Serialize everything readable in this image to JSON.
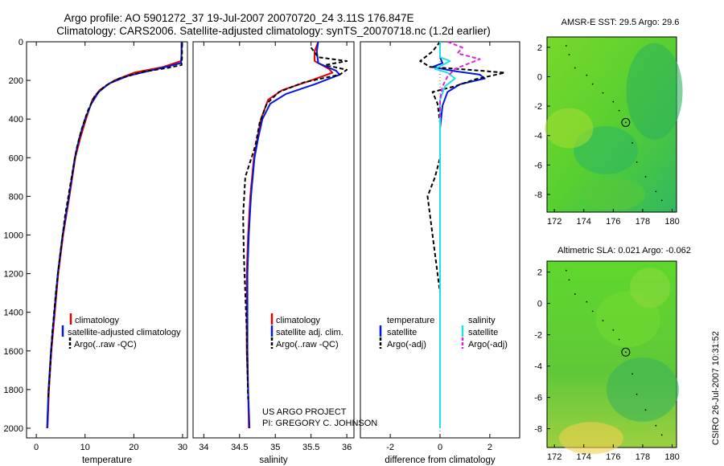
{
  "header": {
    "line1": "Argo profile: AO 5901272_37 19-Jul-2007 20070720_24 3.11S 176.847E",
    "line2": "Climatology: CARS2006. Satellite-adjusted climatology: synTS_20070718.nc (1.2d earlier)"
  },
  "credits": {
    "project": "US ARGO PROJECT",
    "pi": "PI: GREGORY C. JOHNSON",
    "stamp": "CSIRO 26-Jul-2007 10:31:52"
  },
  "colors": {
    "climatology": "#e00000",
    "satellite": "#0018e0",
    "argo": "#000000",
    "satellite_sal": "#20e0e0",
    "argo_sal": "#e020e0"
  },
  "chart_data": [
    {
      "id": "temperature",
      "type": "line",
      "xlabel": "temperature",
      "ylabel": "",
      "xlim": [
        -2,
        31
      ],
      "ylim": [
        2050,
        0
      ],
      "xticks": [
        0,
        10,
        20,
        30
      ],
      "yticks": [
        0,
        200,
        400,
        600,
        800,
        1000,
        1200,
        1400,
        1600,
        1800,
        2000
      ],
      "legend": [
        "climatology",
        "satellite-adjusted climatology",
        "Argo(..raw -QC)"
      ],
      "series": [
        {
          "name": "climatology",
          "color": "#e00000",
          "dash": "",
          "points": [
            [
              29.8,
              0
            ],
            [
              29.8,
              60
            ],
            [
              29.7,
              100
            ],
            [
              26,
              130
            ],
            [
              20,
              160
            ],
            [
              16,
              200
            ],
            [
              13,
              250
            ],
            [
              11.5,
              300
            ],
            [
              10.2,
              400
            ],
            [
              9,
              500
            ],
            [
              8,
              600
            ],
            [
              6.8,
              800
            ],
            [
              5.5,
              1000
            ],
            [
              4.5,
              1200
            ],
            [
              3.8,
              1400
            ],
            [
              3.1,
              1600
            ],
            [
              2.6,
              1800
            ],
            [
              2.3,
              2000
            ]
          ]
        },
        {
          "name": "satellite",
          "color": "#0018e0",
          "dash": "",
          "points": [
            [
              29.8,
              0
            ],
            [
              29.8,
              60
            ],
            [
              29.7,
              110
            ],
            [
              25,
              140
            ],
            [
              19,
              175
            ],
            [
              15,
              215
            ],
            [
              12.8,
              260
            ],
            [
              11.3,
              320
            ],
            [
              10,
              400
            ],
            [
              8.8,
              500
            ],
            [
              7.9,
              600
            ],
            [
              6.7,
              800
            ],
            [
              5.4,
              1000
            ],
            [
              4.4,
              1200
            ],
            [
              3.7,
              1400
            ],
            [
              3.0,
              1600
            ],
            [
              2.5,
              1800
            ],
            [
              2.2,
              2000
            ]
          ]
        },
        {
          "name": "Argo",
          "color": "#000000",
          "dash": "5,3",
          "points": [
            [
              29.9,
              10
            ],
            [
              29.9,
              80
            ],
            [
              29.8,
              120
            ],
            [
              27,
              135
            ],
            [
              22,
              155
            ],
            [
              17,
              190
            ],
            [
              14,
              230
            ],
            [
              12,
              280
            ],
            [
              10.5,
              360
            ],
            [
              9.2,
              460
            ],
            [
              8.2,
              560
            ],
            [
              7.1,
              720
            ],
            [
              5.9,
              900
            ],
            [
              4.9,
              1100
            ],
            [
              4.0,
              1300
            ],
            [
              3.3,
              1500
            ],
            [
              2.8,
              1700
            ],
            [
              2.4,
              1850
            ]
          ]
        }
      ]
    },
    {
      "id": "salinity",
      "type": "line",
      "xlabel": "salinity",
      "ylabel": "",
      "xlim": [
        33.85,
        36.1
      ],
      "ylim": [
        2050,
        0
      ],
      "xticks": [
        34,
        34.5,
        35,
        35.5,
        36
      ],
      "yticks": [],
      "legend": [
        "climatology",
        "satellite adj. clim.",
        "Argo(..raw -QC)"
      ],
      "series": [
        {
          "name": "climatology",
          "color": "#e00000",
          "dash": "",
          "points": [
            [
              35.6,
              0
            ],
            [
              35.55,
              50
            ],
            [
              35.55,
              100
            ],
            [
              35.75,
              140
            ],
            [
              35.8,
              160
            ],
            [
              35.5,
              200
            ],
            [
              35.1,
              250
            ],
            [
              34.9,
              300
            ],
            [
              34.8,
              400
            ],
            [
              34.75,
              500
            ],
            [
              34.7,
              600
            ],
            [
              34.65,
              800
            ],
            [
              34.62,
              1000
            ],
            [
              34.6,
              1200
            ],
            [
              34.6,
              1400
            ],
            [
              34.6,
              1600
            ],
            [
              34.62,
              1800
            ],
            [
              34.63,
              2000
            ]
          ]
        },
        {
          "name": "satellite",
          "color": "#0018e0",
          "dash": "",
          "points": [
            [
              35.6,
              0
            ],
            [
              35.58,
              50
            ],
            [
              35.6,
              110
            ],
            [
              35.85,
              150
            ],
            [
              35.9,
              170
            ],
            [
              35.55,
              220
            ],
            [
              35.15,
              270
            ],
            [
              34.93,
              320
            ],
            [
              34.82,
              400
            ],
            [
              34.76,
              500
            ],
            [
              34.71,
              600
            ],
            [
              34.66,
              800
            ],
            [
              34.63,
              1000
            ],
            [
              34.61,
              1200
            ],
            [
              34.61,
              1400
            ],
            [
              34.61,
              1600
            ],
            [
              34.62,
              1800
            ],
            [
              34.64,
              2000
            ]
          ]
        },
        {
          "name": "Argo",
          "color": "#000000",
          "dash": "5,3",
          "points": [
            [
              35.5,
              30
            ],
            [
              35.6,
              80
            ],
            [
              36.0,
              100
            ],
            [
              35.7,
              120
            ],
            [
              36.0,
              145
            ],
            [
              35.9,
              170
            ],
            [
              35.4,
              210
            ],
            [
              35.05,
              260
            ],
            [
              34.88,
              320
            ],
            [
              34.78,
              420
            ],
            [
              34.72,
              540
            ],
            [
              34.58,
              700
            ],
            [
              34.55,
              900
            ],
            [
              34.56,
              1100
            ],
            [
              34.58,
              1300
            ],
            [
              34.6,
              1500
            ],
            [
              34.61,
              1700
            ],
            [
              34.62,
              1850
            ]
          ]
        }
      ]
    },
    {
      "id": "difference",
      "type": "line",
      "xlabel": "difference from climatology",
      "ylabel": "",
      "xlim": [
        -3.2,
        3.2
      ],
      "ylim": [
        2050,
        0
      ],
      "xticks": [
        -2,
        0,
        2
      ],
      "yticks": [],
      "legend": [
        "temperature",
        "satellite",
        "Argo(-adj)",
        "salinity",
        "satellite",
        "Argo(-adj)"
      ],
      "series": [
        {
          "name": "temperature satellite",
          "color": "#0018e0",
          "dash": "",
          "points": [
            [
              0,
              0
            ],
            [
              0,
              80
            ],
            [
              0.1,
              110
            ],
            [
              -0.3,
              130
            ],
            [
              0.5,
              150
            ],
            [
              1.6,
              170
            ],
            [
              1.8,
              190
            ],
            [
              0.8,
              220
            ],
            [
              0.3,
              260
            ],
            [
              0.1,
              330
            ],
            [
              0,
              450
            ],
            [
              0,
              700
            ],
            [
              0,
              1000
            ],
            [
              0,
              1400
            ],
            [
              0,
              1800
            ],
            [
              0,
              2000
            ]
          ]
        },
        {
          "name": "temperature Argo",
          "color": "#000000",
          "dash": "5,3",
          "points": [
            [
              0,
              0
            ],
            [
              -0.3,
              50
            ],
            [
              -0.8,
              100
            ],
            [
              -0.4,
              130
            ],
            [
              1.2,
              145
            ],
            [
              2.6,
              160
            ],
            [
              1.4,
              195
            ],
            [
              0.6,
              230
            ],
            [
              -0.3,
              260
            ],
            [
              -0.1,
              320
            ],
            [
              0,
              420
            ],
            [
              0,
              600
            ],
            [
              -0.2,
              700
            ],
            [
              -0.5,
              800
            ],
            [
              -0.4,
              900
            ],
            [
              -0.3,
              1000
            ],
            [
              -0.2,
              1100
            ],
            [
              -0.1,
              1200
            ],
            [
              0,
              1300
            ]
          ]
        },
        {
          "name": "salinity satellite",
          "color": "#20e0e0",
          "dash": "",
          "points": [
            [
              0,
              0
            ],
            [
              0,
              80
            ],
            [
              0.4,
              100
            ],
            [
              -0.2,
              140
            ],
            [
              0.3,
              160
            ],
            [
              0.6,
              190
            ],
            [
              0.2,
              230
            ],
            [
              0,
              300
            ],
            [
              0,
              600
            ],
            [
              0,
              1000
            ],
            [
              0,
              1500
            ],
            [
              0,
              2000
            ]
          ]
        },
        {
          "name": "salinity Argo",
          "color": "#e020e0",
          "dash": "5,3",
          "points": [
            [
              0.3,
              0
            ],
            [
              0.9,
              30
            ],
            [
              0.7,
              60
            ],
            [
              1.6,
              90
            ],
            [
              1.2,
              110
            ],
            [
              0.6,
              140
            ],
            [
              0.3,
              180
            ],
            [
              0.1,
              230
            ],
            [
              0,
              300
            ],
            [
              0,
              400
            ]
          ]
        }
      ]
    },
    {
      "id": "sst-map",
      "type": "heatmap",
      "title": "AMSR-E SST: 29.5 Argo: 29.6",
      "xlim": [
        171.5,
        180.3
      ],
      "ylim": [
        -9.2,
        2.7
      ],
      "xticks": [
        172,
        174,
        176,
        178,
        180
      ],
      "yticks": [
        2,
        0,
        -2,
        -4,
        -6,
        -8
      ],
      "float_position": [
        176.847,
        -3.11
      ]
    },
    {
      "id": "sla-map",
      "type": "heatmap",
      "title": "Altimetric SLA: 0.021 Argo: -0.062",
      "xlim": [
        171.5,
        180.3
      ],
      "ylim": [
        -9.2,
        2.7
      ],
      "xticks": [
        172,
        174,
        176,
        178,
        180
      ],
      "yticks": [
        2,
        0,
        -2,
        -4,
        -6,
        -8
      ],
      "float_position": [
        176.847,
        -3.11
      ]
    }
  ]
}
